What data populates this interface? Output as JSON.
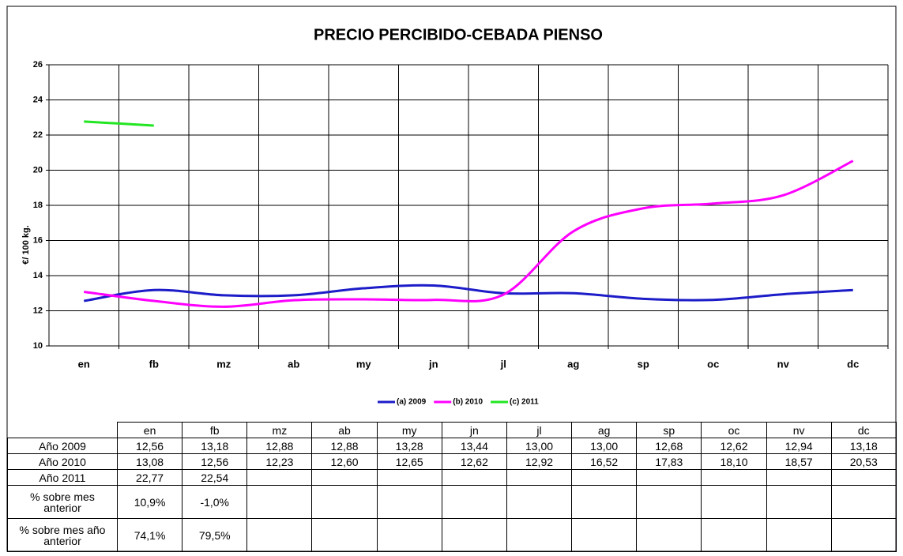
{
  "chart_data": {
    "type": "line",
    "title": "PRECIO PERCIBIDO-CEBADA PIENSO",
    "y_label": "€/ 100 kg.",
    "categories": [
      "en",
      "fb",
      "mz",
      "ab",
      "my",
      "jn",
      "jl",
      "ag",
      "sp",
      "oc",
      "nv",
      "dc"
    ],
    "series": [
      {
        "name": "(a) 2009",
        "color": "#1c1cc8",
        "values": [
          12.56,
          13.18,
          12.88,
          12.88,
          13.28,
          13.44,
          13.0,
          13.0,
          12.68,
          12.62,
          12.94,
          13.18
        ],
        "value_labels": [
          "12,56",
          "13,18",
          "12,88",
          "12,88",
          "13,28",
          "13,44",
          "13,00",
          "13,00",
          "12,68",
          "12,62",
          "12,94",
          "13,18"
        ]
      },
      {
        "name": "(b) 2010",
        "color": "#ff00ff",
        "values": [
          13.08,
          12.56,
          12.23,
          12.6,
          12.65,
          12.62,
          12.92,
          16.52,
          17.83,
          18.1,
          18.57,
          20.53
        ],
        "value_labels": [
          "13,08",
          "12,56",
          "12,23",
          "12,60",
          "12,65",
          "12,62",
          "12,92",
          "16,52",
          "17,83",
          "18,10",
          "18,57",
          "20,53"
        ]
      },
      {
        "name": "(c) 2011",
        "color": "#22e622",
        "values": [
          22.77,
          22.54,
          null,
          null,
          null,
          null,
          null,
          null,
          null,
          null,
          null,
          null
        ],
        "value_labels": [
          "22,77",
          "22,54",
          null,
          null,
          null,
          null,
          null,
          null,
          null,
          null,
          null,
          null
        ]
      }
    ],
    "ylim": [
      10,
      26
    ],
    "yticks": [
      10,
      12,
      14,
      16,
      18,
      20,
      22,
      24,
      26
    ],
    "grid": true,
    "legend": "bottom"
  },
  "table": {
    "row_labels": [
      "Año 2009",
      "Año 2010",
      "Año 2011",
      "% sobre mes anterior",
      "% sobre mes año anterior"
    ],
    "extra_rows": [
      [
        "10,9%",
        "-1,0%"
      ],
      [
        "74,1%",
        "79,5%"
      ]
    ]
  }
}
